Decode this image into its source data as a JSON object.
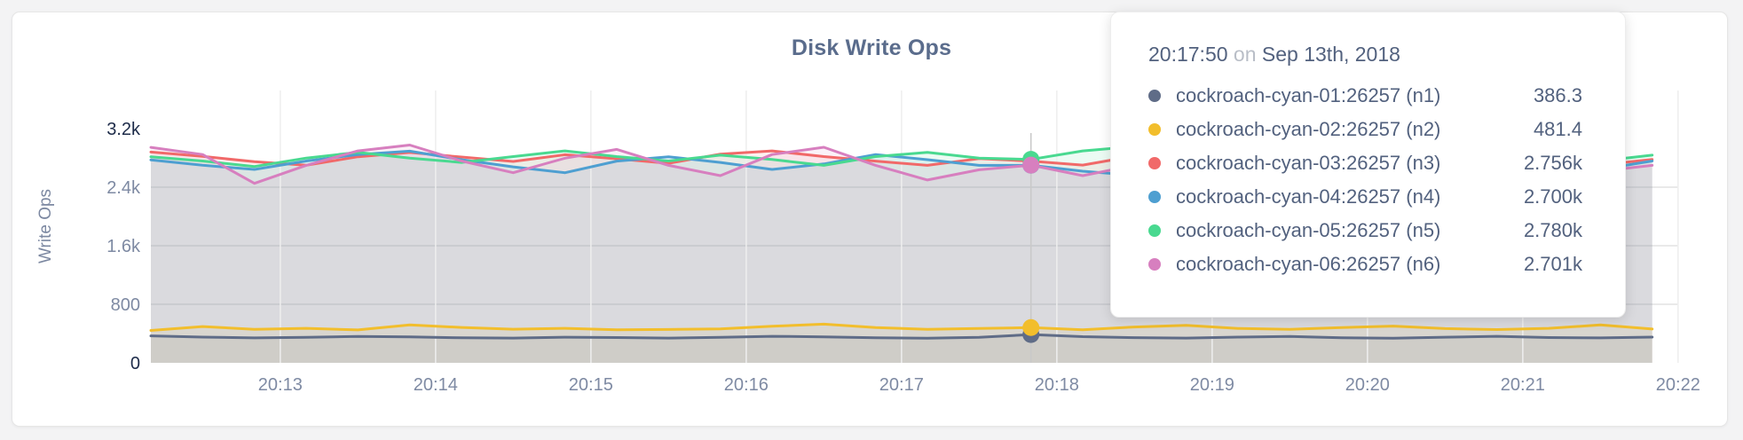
{
  "card": {
    "title": "Disk Write Ops"
  },
  "colors": {
    "background": "#f3f3f4",
    "card_bg": "#ffffff",
    "title": "#5a6c8c",
    "grid_h": "#e2e2e2",
    "grid_v": "#eeeeee",
    "hover_guideline": "#c9c9c9",
    "tick": "#7e8aa3",
    "tick_strong": "#1d2b49",
    "tooltip_text": "#52617e",
    "tooltip_muted": "#b9bec7"
  },
  "chart_data": {
    "type": "line",
    "title": "Disk Write Ops",
    "xlabel": "",
    "ylabel": "Write Ops",
    "ylim": [
      0,
      3200
    ],
    "grid": true,
    "legend_position": "tooltip",
    "y_ticks": [
      {
        "value": 0,
        "label": "0",
        "strong": true,
        "grid": false
      },
      {
        "value": 800,
        "label": "800",
        "strong": false,
        "grid": true
      },
      {
        "value": 1600,
        "label": "1.6k",
        "strong": false,
        "grid": true
      },
      {
        "value": 2400,
        "label": "2.4k",
        "strong": false,
        "grid": true
      },
      {
        "value": 3200,
        "label": "3.2k",
        "strong": true,
        "grid": false
      }
    ],
    "x_ticks": [
      "20:13",
      "20:14",
      "20:15",
      "20:16",
      "20:17",
      "20:18",
      "20:19",
      "20:20",
      "20:21",
      "20:22"
    ],
    "x_times": [
      "20:12:10",
      "20:12:30",
      "20:12:50",
      "20:13:10",
      "20:13:30",
      "20:13:50",
      "20:14:10",
      "20:14:30",
      "20:14:50",
      "20:15:10",
      "20:15:30",
      "20:15:50",
      "20:16:10",
      "20:16:30",
      "20:16:50",
      "20:17:10",
      "20:17:30",
      "20:17:50",
      "20:18:10",
      "20:18:30",
      "20:18:50",
      "20:19:10",
      "20:19:30",
      "20:19:50",
      "20:20:10",
      "20:20:30",
      "20:20:50",
      "20:21:10",
      "20:21:30",
      "20:21:50"
    ],
    "series": [
      {
        "name": "cockroach-cyan-01:26257 (n1)",
        "color": "#5F6C87",
        "values": [
          368,
          352,
          340,
          348,
          360,
          355,
          342,
          338,
          350,
          345,
          338,
          348,
          362,
          355,
          342,
          336,
          348,
          386.3,
          358,
          344,
          338,
          352,
          360,
          342,
          336,
          350,
          362,
          345,
          340,
          352
        ]
      },
      {
        "name": "cockroach-cyan-02:26257 (n2)",
        "color": "#F2BE2C",
        "values": [
          442,
          496,
          458,
          472,
          450,
          518,
          484,
          460,
          472,
          452,
          456,
          464,
          500,
          528,
          482,
          458,
          470,
          481.4,
          452,
          490,
          512,
          470,
          458,
          482,
          502,
          468,
          454,
          472,
          518,
          462
        ]
      },
      {
        "name": "cockroach-cyan-03:26257 (n3)",
        "color": "#F16969",
        "values": [
          2880,
          2820,
          2748,
          2700,
          2816,
          2874,
          2812,
          2752,
          2844,
          2788,
          2726,
          2852,
          2896,
          2818,
          2756,
          2698,
          2790,
          2756,
          2702,
          2826,
          2760,
          2704,
          2778,
          2846,
          2792,
          2722,
          2798,
          2758,
          2704,
          2780
        ]
      },
      {
        "name": "cockroach-cyan-04:26257 (n4)",
        "color": "#4E9FD1",
        "values": [
          2772,
          2700,
          2642,
          2758,
          2846,
          2892,
          2776,
          2678,
          2598,
          2756,
          2816,
          2738,
          2642,
          2718,
          2846,
          2776,
          2698,
          2700,
          2618,
          2562,
          2698,
          2808,
          2756,
          2678,
          2758,
          2892,
          2818,
          2698,
          2642,
          2758
        ]
      },
      {
        "name": "cockroach-cyan-05:26257 (n5)",
        "color": "#49D990",
        "values": [
          2816,
          2758,
          2682,
          2798,
          2876,
          2798,
          2738,
          2818,
          2896,
          2818,
          2758,
          2838,
          2778,
          2698,
          2818,
          2876,
          2798,
          2780,
          2896,
          2956,
          2838,
          2758,
          2698,
          2818,
          2876,
          2798,
          2738,
          2818,
          2758,
          2838
        ]
      },
      {
        "name": "cockroach-cyan-06:26257 (n6)",
        "color": "#D77FBF",
        "values": [
          2944,
          2846,
          2452,
          2698,
          2896,
          2976,
          2758,
          2598,
          2796,
          2916,
          2698,
          2558,
          2846,
          2946,
          2698,
          2498,
          2638,
          2701,
          2558,
          2698,
          2956,
          2778,
          2538,
          2698,
          3036,
          2818,
          2598,
          2758,
          2618,
          2698
        ]
      }
    ],
    "hover": {
      "index": 17,
      "time": "20:17:50"
    }
  },
  "tooltip": {
    "time": "20:17:50",
    "conjunction": "on",
    "date": "Sep 13th, 2018",
    "rows": [
      {
        "label": "cockroach-cyan-01:26257 (n1)",
        "value": "386.3",
        "color": "#5F6C87"
      },
      {
        "label": "cockroach-cyan-02:26257 (n2)",
        "value": "481.4",
        "color": "#F2BE2C"
      },
      {
        "label": "cockroach-cyan-03:26257 (n3)",
        "value": "2.756k",
        "color": "#F16969"
      },
      {
        "label": "cockroach-cyan-04:26257 (n4)",
        "value": "2.700k",
        "color": "#4E9FD1"
      },
      {
        "label": "cockroach-cyan-05:26257 (n5)",
        "value": "2.780k",
        "color": "#49D990"
      },
      {
        "label": "cockroach-cyan-06:26257 (n6)",
        "value": "2.701k",
        "color": "#D77FBF"
      }
    ]
  }
}
